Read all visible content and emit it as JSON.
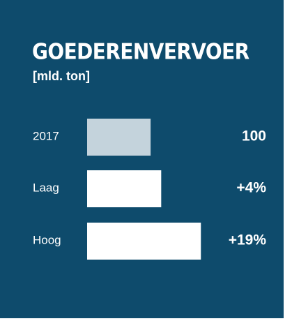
{
  "chart_data": {
    "type": "hbar",
    "title": "GOEDERENVERVOER",
    "subtitle": "[mld. ton]",
    "categories": [
      "2017",
      "Laag",
      "Hoog"
    ],
    "values": [
      100,
      104,
      119
    ],
    "value_labels": [
      "100",
      "+4%",
      "+19%"
    ],
    "colors": [
      "#c4d3dc",
      "#ffffff",
      "#ffffff"
    ],
    "xlim": [
      76,
      140
    ]
  }
}
